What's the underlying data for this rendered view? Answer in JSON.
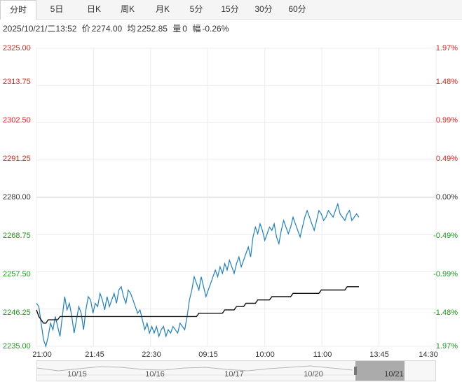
{
  "tabs": [
    {
      "label": "分时",
      "active": true
    },
    {
      "label": "5日"
    },
    {
      "label": "日K"
    },
    {
      "label": "周K"
    },
    {
      "label": "月K"
    },
    {
      "label": "5分"
    },
    {
      "label": "15分"
    },
    {
      "label": "30分"
    },
    {
      "label": "60分"
    }
  ],
  "info": {
    "datetime": "2025/10/21/二13:52",
    "price_label": "价",
    "price": "2274.00",
    "avg_label": "均",
    "avg": "2252.85",
    "vol_label": "量",
    "vol": "0",
    "change_label": "幅",
    "change": "-0.26%"
  },
  "colors": {
    "up": "#e02020",
    "down": "#1a9a1a",
    "price_line": "#1f7fc4",
    "avg_line": "#111111"
  },
  "chart_data": {
    "type": "line",
    "ylim": [
      2235.0,
      2325.0
    ],
    "prev_close": 2280.0,
    "y_ticks_left": [
      "2325.00",
      "2313.75",
      "2302.50",
      "2291.25",
      "2280.00",
      "2268.75",
      "2257.50",
      "2246.25",
      "2235.00"
    ],
    "y_ticks_right": [
      "1.97%",
      "1.48%",
      "0.99%",
      "0.49%",
      "0.00%",
      "-0.49%",
      "-0.99%",
      "-1.48%",
      "-1.97%"
    ],
    "x_ticks": [
      "21:00",
      "21:45",
      "22:30",
      "09:15",
      "10:00",
      "11:00",
      "13:45",
      "14:30"
    ],
    "navigator_labels": [
      "10/15",
      "10/16",
      "10/17",
      "10/20",
      "10/21"
    ],
    "series": [
      {
        "key": "price",
        "values": [
          2248,
          2247,
          2242,
          2237,
          2235,
          2238,
          2242,
          2240,
          2244,
          2241,
          2238,
          2244,
          2250,
          2246,
          2248,
          2244,
          2239,
          2243,
          2247,
          2245,
          2240,
          2246,
          2250,
          2249,
          2245,
          2248,
          2247,
          2251,
          2249,
          2246,
          2250,
          2247,
          2249,
          2251,
          2248,
          2252,
          2253,
          2250,
          2248,
          2252,
          2251,
          2249,
          2247,
          2245,
          2246,
          2243,
          2240,
          2242,
          2239,
          2241,
          2239,
          2241,
          2238,
          2240,
          2241,
          2238,
          2240,
          2239,
          2241,
          2240,
          2239,
          2242,
          2241,
          2240,
          2244,
          2249,
          2252,
          2256,
          2254,
          2252,
          2256,
          2253,
          2250,
          2252,
          2254,
          2256,
          2258,
          2256,
          2259,
          2257,
          2260,
          2258,
          2261,
          2259,
          2257,
          2260,
          2262,
          2259,
          2261,
          2263,
          2265,
          2262,
          2268,
          2271,
          2269,
          2272,
          2270,
          2267,
          2269,
          2271,
          2270,
          2272,
          2268,
          2266,
          2270,
          2273,
          2271,
          2269,
          2271,
          2274,
          2272,
          2270,
          2268,
          2271,
          2274,
          2276,
          2274,
          2272,
          2270,
          2273,
          2276,
          2275,
          2273,
          2274,
          2276,
          2275,
          2274,
          2276,
          2278,
          2275,
          2274,
          2273,
          2275,
          2276,
          2273,
          2274,
          2275,
          2274
        ]
      },
      {
        "key": "avg",
        "values": [
          2246,
          2244,
          2243,
          2242,
          2242,
          2243,
          2243,
          2243,
          2243,
          2243,
          2244,
          2244,
          2244,
          2244,
          2244,
          2244,
          2244,
          2244,
          2244,
          2244,
          2244,
          2244,
          2244,
          2244,
          2244,
          2244,
          2244,
          2244,
          2244,
          2244,
          2244,
          2244,
          2244,
          2244,
          2244,
          2244,
          2244,
          2244,
          2244,
          2244,
          2244,
          2244,
          2244,
          2244,
          2244,
          2244,
          2244,
          2244,
          2244,
          2244,
          2244,
          2244,
          2244,
          2244,
          2244,
          2244,
          2244,
          2244,
          2244,
          2244,
          2244,
          2244,
          2244,
          2244,
          2244,
          2244,
          2244,
          2244,
          2244,
          2245,
          2245,
          2245,
          2245,
          2245,
          2245,
          2245,
          2245,
          2245,
          2245,
          2245,
          2246,
          2246,
          2246,
          2246,
          2246,
          2247,
          2247,
          2247,
          2247,
          2248,
          2248,
          2248,
          2248,
          2248,
          2249,
          2249,
          2249,
          2249,
          2249,
          2249,
          2250,
          2250,
          2250,
          2250,
          2250,
          2250,
          2250,
          2250,
          2250,
          2251,
          2251,
          2251,
          2251,
          2251,
          2251,
          2251,
          2251,
          2251,
          2251,
          2251,
          2251,
          2252,
          2252,
          2252,
          2252,
          2252,
          2252,
          2252,
          2252,
          2252,
          2252,
          2252,
          2253,
          2253,
          2253,
          2253,
          2253,
          2253
        ]
      }
    ]
  }
}
